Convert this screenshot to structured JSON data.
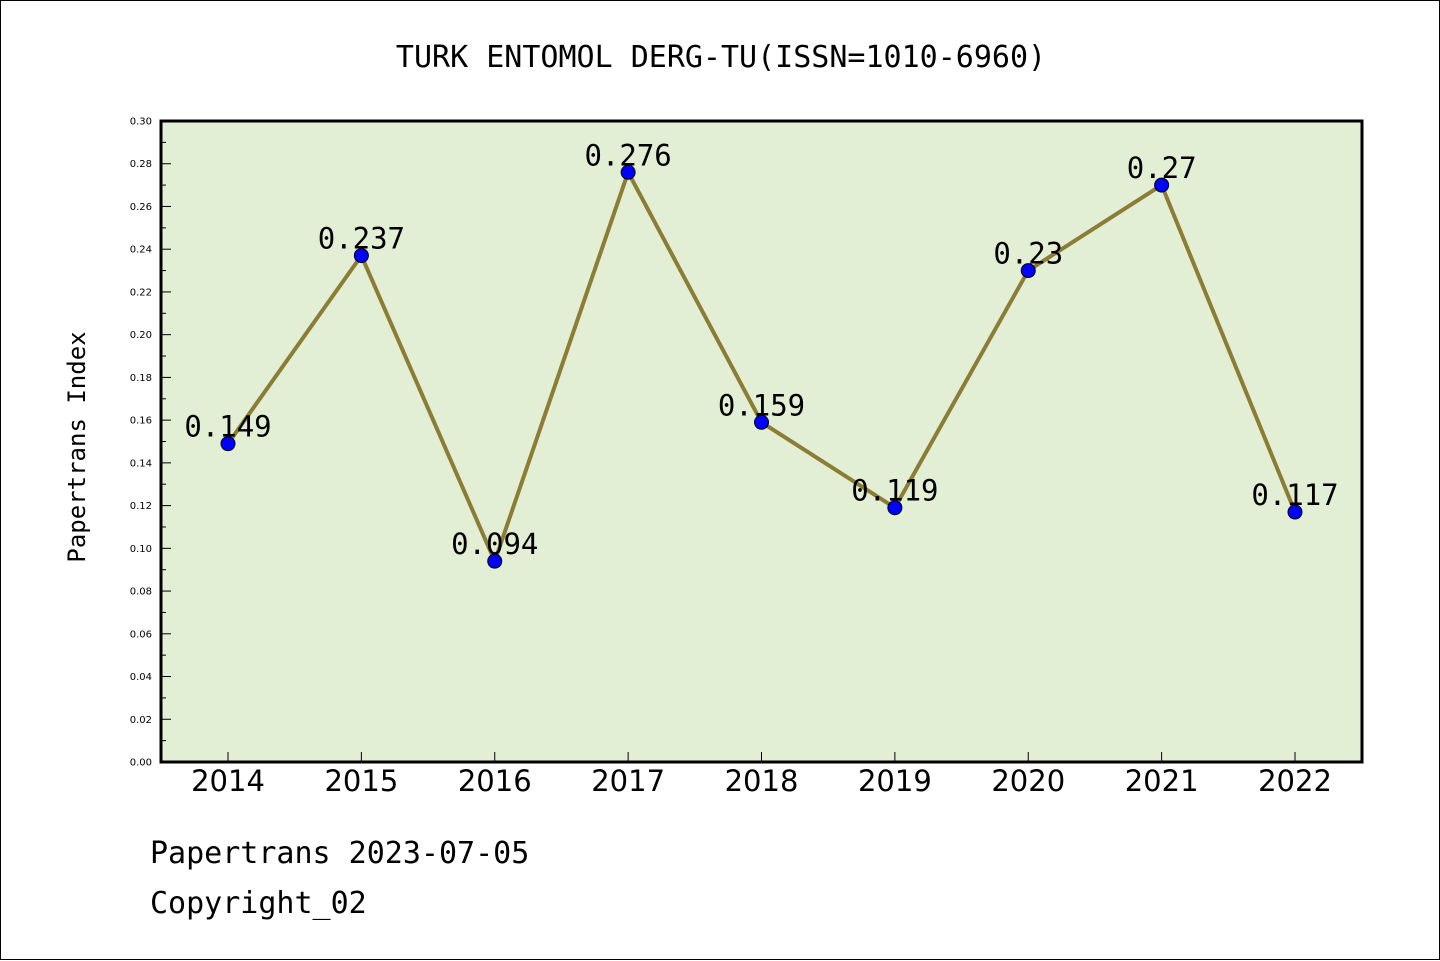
{
  "footer": {
    "line1": "Papertrans 2023-07-05",
    "line2": "Copyright_02"
  },
  "chart_data": {
    "type": "line",
    "title": "TURK ENTOMOL DERG-TU(ISSN=1010-6960)",
    "xlabel": "",
    "ylabel": "Papertrans Index",
    "categories": [
      "2014",
      "2015",
      "2016",
      "2017",
      "2018",
      "2019",
      "2020",
      "2021",
      "2022"
    ],
    "values": [
      0.149,
      0.237,
      0.094,
      0.276,
      0.159,
      0.119,
      0.23,
      0.27,
      0.117
    ],
    "data_labels": [
      "0.149",
      "0.237",
      "0.094",
      "0.276",
      "0.159",
      "0.119",
      "0.23",
      "0.27",
      "0.117"
    ],
    "ylim": [
      0,
      0.3
    ],
    "yticks": [
      0.0,
      0.02,
      0.04,
      0.06,
      0.08,
      0.1,
      0.12,
      0.14,
      0.16,
      0.18,
      0.2,
      0.22,
      0.24,
      0.26,
      0.28,
      0.3
    ],
    "ytick_labels": [
      "0.00",
      "0.02",
      "0.04",
      "0.06",
      "0.08",
      "0.10",
      "0.12",
      "0.14",
      "0.16",
      "0.18",
      "0.20",
      "0.22",
      "0.24",
      "0.26",
      "0.28",
      "0.30"
    ],
    "grid": false,
    "colors": {
      "plot_background": "#e2efd5",
      "line": "#8b7d35",
      "marker": "#0000ff"
    }
  }
}
